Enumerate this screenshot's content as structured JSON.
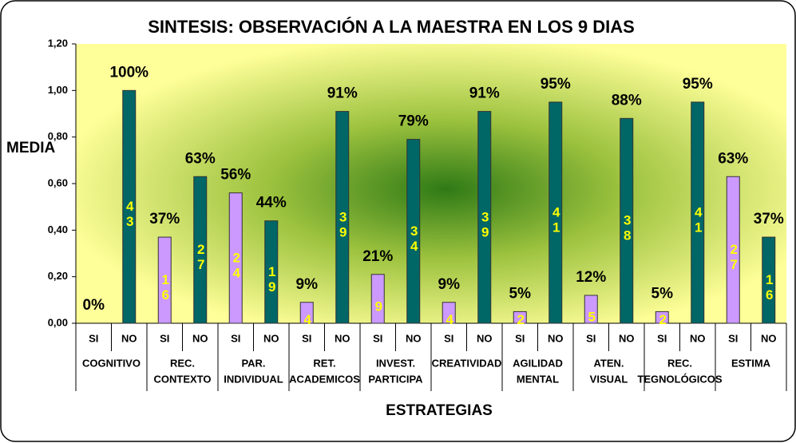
{
  "chart_data": {
    "type": "bar",
    "title": "SINTESIS: OBSERVACIÓN A LA MAESTRA EN LOS 9 DIAS",
    "y_label": "MEDIA",
    "x_label": "ESTRATEGIAS",
    "categories": [
      "SI",
      "NO",
      "SI",
      "NO",
      "SI",
      "NO",
      "SI",
      "NO",
      "SI",
      "NO",
      "SI",
      "NO",
      "SI",
      "NO",
      "SI",
      "NO",
      "SI",
      "NO",
      "SI",
      "NO"
    ],
    "groups": [
      [
        "COGNITIVO"
      ],
      [
        "REC.",
        "CONTEXTO"
      ],
      [
        "PAR.",
        "INDIVIDUAL"
      ],
      [
        "RET.",
        "ACADEMICOS"
      ],
      [
        "INVEST.",
        "PARTICIPA"
      ],
      [
        "CREATIVIDAD"
      ],
      [
        "AGILIDAD",
        "MENTAL"
      ],
      [
        "ATEN.",
        "VISUAL"
      ],
      [
        "REC.",
        "TEGNOLÓGICOS"
      ],
      [
        "ESTIMA"
      ]
    ],
    "values": [
      0,
      1.0,
      0.37,
      0.63,
      0.56,
      0.44,
      0.09,
      0.91,
      0.21,
      0.79,
      0.09,
      0.91,
      0.05,
      0.95,
      0.12,
      0.88,
      0.05,
      0.95,
      0.63,
      0.37
    ],
    "value_labels": [
      "0%",
      "100%",
      "37%",
      "63%",
      "56%",
      "44%",
      "9%",
      "91%",
      "21%",
      "79%",
      "9%",
      "91%",
      "5%",
      "95%",
      "12%",
      "88%",
      "5%",
      "95%",
      "63%",
      "37%"
    ],
    "counts": [
      null,
      43,
      16,
      27,
      24,
      19,
      4,
      39,
      9,
      34,
      4,
      39,
      2,
      41,
      5,
      38,
      2,
      41,
      27,
      16
    ],
    "colors": {
      "SI": "#cc99ff",
      "NO": "#006666"
    },
    "ylim": [
      0,
      1.2
    ],
    "yticks": [
      {
        "value": 0,
        "label": "0,00"
      },
      {
        "value": 0.2,
        "label": "0,20"
      },
      {
        "value": 0.4,
        "label": "0,40"
      },
      {
        "value": 0.6,
        "label": "0,60"
      },
      {
        "value": 0.8,
        "label": "0,80"
      },
      {
        "value": 1.0,
        "label": "1,00"
      },
      {
        "value": 1.2,
        "label": "1,20"
      }
    ]
  }
}
